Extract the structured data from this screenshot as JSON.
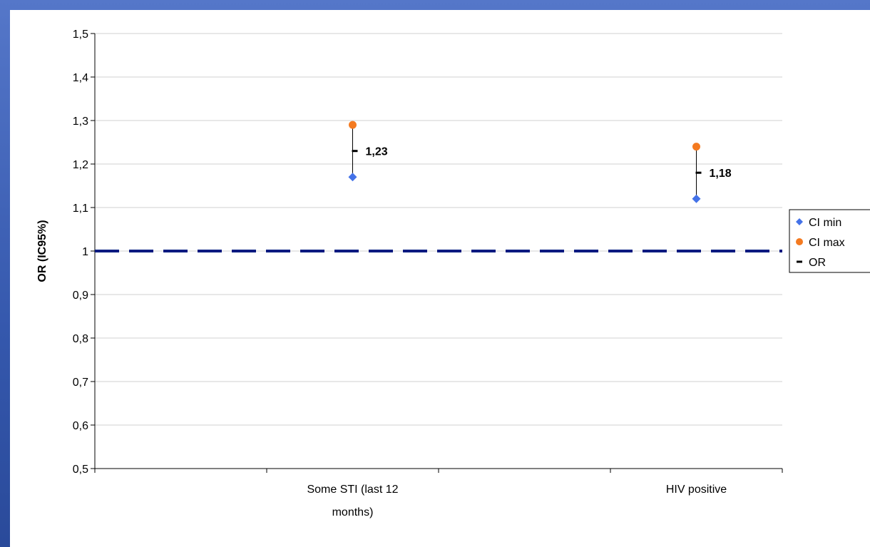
{
  "chart_data": {
    "type": "scatter",
    "ylabel": "OR (IC95%)",
    "xlabel": "",
    "ylim": [
      0.5,
      1.5
    ],
    "y_ticks": [
      "0,5",
      "0,6",
      "0,7",
      "0,8",
      "0,9",
      "1",
      "1,1",
      "1,2",
      "1,3",
      "1,4",
      "1,5"
    ],
    "categories": [
      "Some STI (last 12 months)",
      "HIV positive"
    ],
    "category_label_lines": [
      [
        "Some STI (last 12",
        "months)"
      ],
      [
        "HIV positive"
      ]
    ],
    "series": [
      {
        "name": "CI min",
        "values": [
          1.17,
          1.12
        ],
        "color": "#4472e8",
        "marker": "diamond"
      },
      {
        "name": "CI max",
        "values": [
          1.29,
          1.24
        ],
        "color": "#f47a20",
        "marker": "circle"
      },
      {
        "name": "OR",
        "values": [
          1.23,
          1.18
        ],
        "color": "#000000",
        "marker": "dash"
      }
    ],
    "data_labels": [
      "1,23",
      "1,18"
    ],
    "reference_line": {
      "y": 1,
      "style": "dashed",
      "color": "#001a80"
    },
    "grid": true,
    "legend": "right"
  }
}
